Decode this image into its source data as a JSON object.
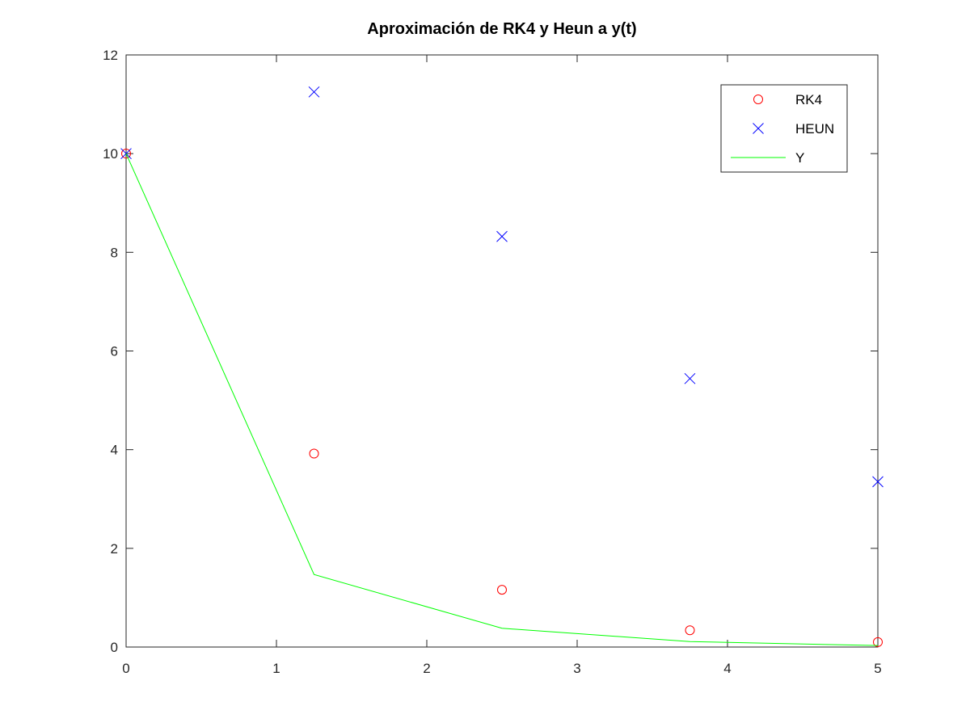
{
  "chart_data": {
    "type": "scatter",
    "title": "Aproximación de RK4 y Heun a y(t)",
    "xlabel": "",
    "ylabel": "",
    "xlim": [
      0,
      5
    ],
    "ylim": [
      0,
      12
    ],
    "xticks": [
      0,
      1,
      2,
      3,
      4,
      5
    ],
    "yticks": [
      0,
      2,
      4,
      6,
      8,
      10,
      12
    ],
    "grid": false,
    "legend_position": "top-right",
    "series": [
      {
        "name": "RK4",
        "kind": "markers",
        "marker": "circle",
        "color": "#ff0000",
        "x": [
          0,
          1.25,
          2.5,
          3.75,
          5
        ],
        "y": [
          10.0,
          3.92,
          1.16,
          0.34,
          0.1
        ]
      },
      {
        "name": "HEUN",
        "kind": "markers",
        "marker": "x",
        "color": "#0000ff",
        "x": [
          0,
          1.25,
          2.5,
          3.75,
          5
        ],
        "y": [
          10.0,
          11.25,
          8.32,
          5.44,
          3.35
        ]
      },
      {
        "name": "Y",
        "kind": "line",
        "marker": "none",
        "color": "#00ff00",
        "x": [
          0,
          1.25,
          2.5,
          3.75,
          5
        ],
        "y": [
          10.0,
          1.47,
          0.38,
          0.11,
          0.03
        ]
      }
    ]
  }
}
